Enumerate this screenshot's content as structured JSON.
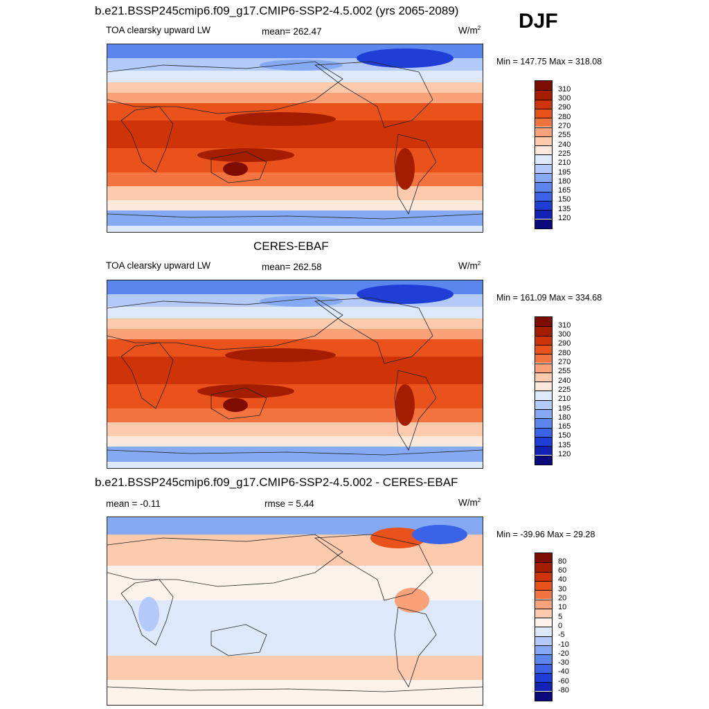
{
  "season": "DJF",
  "panels": [
    {
      "title": "b.e21.BSSP245cmip6.f09_g17.CMIP6-SSP2-4.5.002 (yrs 2065-2089)",
      "left_label": "TOA clearsky upward LW",
      "mid_label": "mean= 262.47",
      "unit": "W/m",
      "unit_sup": "2",
      "minmax": "Min = 147.75 Max = 318.08"
    },
    {
      "title": "CERES-EBAF",
      "left_label": "TOA clearsky upward LW",
      "mid_label": "mean= 262.58",
      "unit": "W/m",
      "unit_sup": "2",
      "minmax": "Min = 161.09 Max = 334.68"
    },
    {
      "title": "b.e21.BSSP245cmip6.f09_g17.CMIP6-SSP2-4.5.002 - CERES-EBAF",
      "left_label": "mean =  -0.11",
      "mid_label": "rmse =   5.44",
      "unit": "W/m",
      "unit_sup": "2",
      "minmax": "Min = -39.96 Max =  29.28"
    }
  ],
  "chart_data": [
    {
      "type": "heatmap",
      "title": "b.e21.BSSP245cmip6.f09_g17.CMIP6-SSP2-4.5.002 (yrs 2065-2089)",
      "variable": "TOA clearsky upward LW",
      "units": "W/m2",
      "mean": 262.47,
      "min": 147.75,
      "max": 318.08,
      "colorbar_levels": [
        120,
        135,
        150,
        165,
        180,
        195,
        210,
        225,
        240,
        255,
        270,
        280,
        290,
        300,
        310
      ],
      "colors": [
        "#0a0a7d",
        "#1222b4",
        "#1f3ed6",
        "#3a63e8",
        "#5b86ee",
        "#86a9f3",
        "#b3c9f7",
        "#dde8fb",
        "#fde9dc",
        "#fccaac",
        "#f9a178",
        "#f4743f",
        "#e9521b",
        "#ce3407",
        "#a41d00",
        "#7d0d00"
      ]
    },
    {
      "type": "heatmap",
      "title": "CERES-EBAF",
      "variable": "TOA clearsky upward LW",
      "units": "W/m2",
      "mean": 262.58,
      "min": 161.09,
      "max": 334.68,
      "colorbar_levels": [
        120,
        135,
        150,
        165,
        180,
        195,
        210,
        225,
        240,
        255,
        270,
        280,
        290,
        300,
        310
      ],
      "colors": [
        "#0a0a7d",
        "#1222b4",
        "#1f3ed6",
        "#3a63e8",
        "#5b86ee",
        "#86a9f3",
        "#b3c9f7",
        "#dde8fb",
        "#fde9dc",
        "#fccaac",
        "#f9a178",
        "#f4743f",
        "#e9521b",
        "#ce3407",
        "#a41d00",
        "#7d0d00"
      ]
    },
    {
      "type": "heatmap",
      "title": "b.e21.BSSP245cmip6.f09_g17.CMIP6-SSP2-4.5.002 - CERES-EBAF",
      "units": "W/m2",
      "mean": -0.11,
      "rmse": 5.44,
      "min": -39.96,
      "max": 29.28,
      "colorbar_levels": [
        -80,
        -60,
        -40,
        -30,
        -20,
        -10,
        -5,
        0,
        5,
        10,
        20,
        30,
        40,
        60,
        80
      ],
      "colors": [
        "#0a0a7d",
        "#1222b4",
        "#1f3ed6",
        "#3a63e8",
        "#5b86ee",
        "#86a9f3",
        "#b3c9f7",
        "#dde8fb",
        "#fdf3ec",
        "#fccaac",
        "#f9a178",
        "#f4743f",
        "#e9521b",
        "#ce3407",
        "#a41d00",
        "#7d0d00"
      ]
    }
  ]
}
